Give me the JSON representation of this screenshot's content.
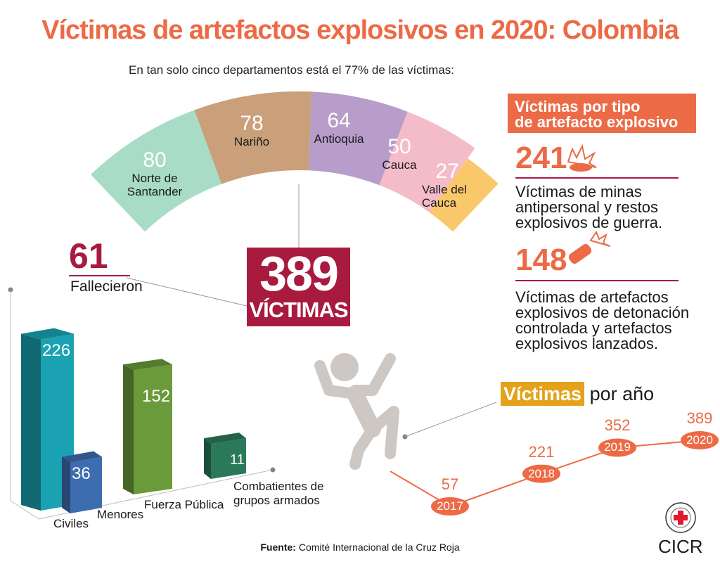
{
  "title": "Víctimas de artefactos explosivos en 2020: Colombia",
  "subtitle": "En tan solo cinco departamentos está el 77% de las víctimas:",
  "total": {
    "number": "389",
    "label": "VÍCTIMAS"
  },
  "deaths": {
    "number": "61",
    "label": "Fallecieron"
  },
  "by_type": {
    "header_line1": "Víctimas por tipo",
    "header_line2": "de artefacto explosivo",
    "items": [
      {
        "number": "241",
        "icon": "landmine-icon",
        "desc": [
          "Víctimas de minas",
          "antipersonal y restos",
          "explosivos de guerra."
        ]
      },
      {
        "number": "148",
        "icon": "grenade-icon",
        "desc": [
          "Víctimas de artefactos",
          "explosivos de detonación",
          "controlada y artefactos",
          "explosivos lanzados."
        ]
      }
    ]
  },
  "year_header": {
    "highlight": "Víctimas",
    "rest": "por año"
  },
  "source": {
    "label": "Fuente:",
    "text": "Comité Internacional de la Cruz Roja"
  },
  "logo": {
    "text": "CICR",
    "seal_text": "COMITE INTERNATIONAL GENEVE"
  },
  "chart_data": [
    {
      "type": "pie",
      "shape": "semi-ring",
      "categories": [
        "Norte de Santander",
        "Nariño",
        "Antioquia",
        "Cauca",
        "Valle del Cauca"
      ],
      "values": [
        80,
        78,
        64,
        50,
        27
      ],
      "colors": [
        "#a8dcc6",
        "#c9a07a",
        "#b89cc9",
        "#f4bcc8",
        "#f9c86a"
      ]
    },
    {
      "type": "bar",
      "categories": [
        "Civiles",
        "Menores",
        "Fuerza Pública",
        "Combatientes de grupos armados"
      ],
      "values": [
        226,
        36,
        152,
        11
      ],
      "colors": [
        "#1aa2b3",
        "#3d6db0",
        "#6a9a3a",
        "#2a7a5a"
      ]
    },
    {
      "type": "line",
      "title": "Víctimas por año",
      "x": [
        "2017",
        "2018",
        "2019",
        "2020"
      ],
      "values": [
        57,
        221,
        352,
        389
      ],
      "color": "#ec6a45"
    }
  ]
}
